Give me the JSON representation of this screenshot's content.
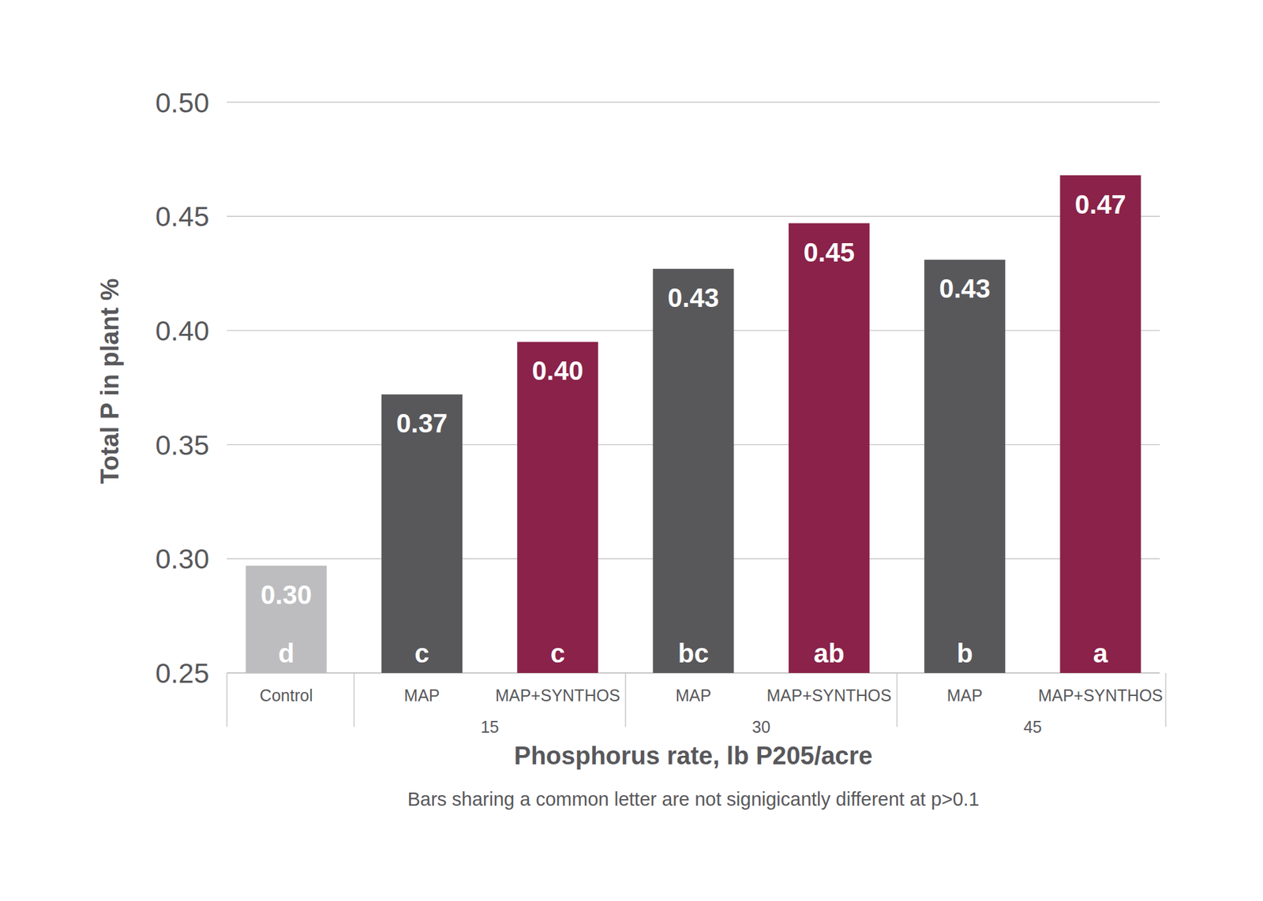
{
  "chart_data": {
    "type": "bar",
    "categories": [
      "Control",
      "MAP",
      "MAP+SYNTHOS",
      "MAP",
      "MAP+SYNTHOS",
      "MAP",
      "MAP+SYNTHOS"
    ],
    "category_groups": [
      null,
      15,
      15,
      30,
      30,
      45,
      45
    ],
    "values": [
      0.297,
      0.372,
      0.395,
      0.427,
      0.447,
      0.431,
      0.468
    ],
    "value_labels": [
      "0.30",
      "0.37",
      "0.40",
      "0.43",
      "0.45",
      "0.43",
      "0.47"
    ],
    "significance_letters": [
      "d",
      "c",
      "c",
      "bc",
      "ab",
      "b",
      "a"
    ],
    "colors": [
      "#bdbdbf",
      "#58585b",
      "#8a2249",
      "#58585b",
      "#8a2249",
      "#58585b",
      "#8a2249"
    ],
    "x_label": "Phosphorus rate, lb P205/acre",
    "y_label": "Total P in plant %",
    "note": "Bars sharing a common letter are not signigicantly different at p>0.1",
    "ylim": [
      0.25,
      0.5
    ],
    "yticks": [
      0.25,
      {
        "value": 0.3,
        "label": "0.30"
      },
      0.35,
      {
        "value": 0.4,
        "label": "0.40"
      },
      0.45,
      {
        "value": 0.5,
        "label": "0.50"
      }
    ],
    "grid": true,
    "data_labels": true
  }
}
